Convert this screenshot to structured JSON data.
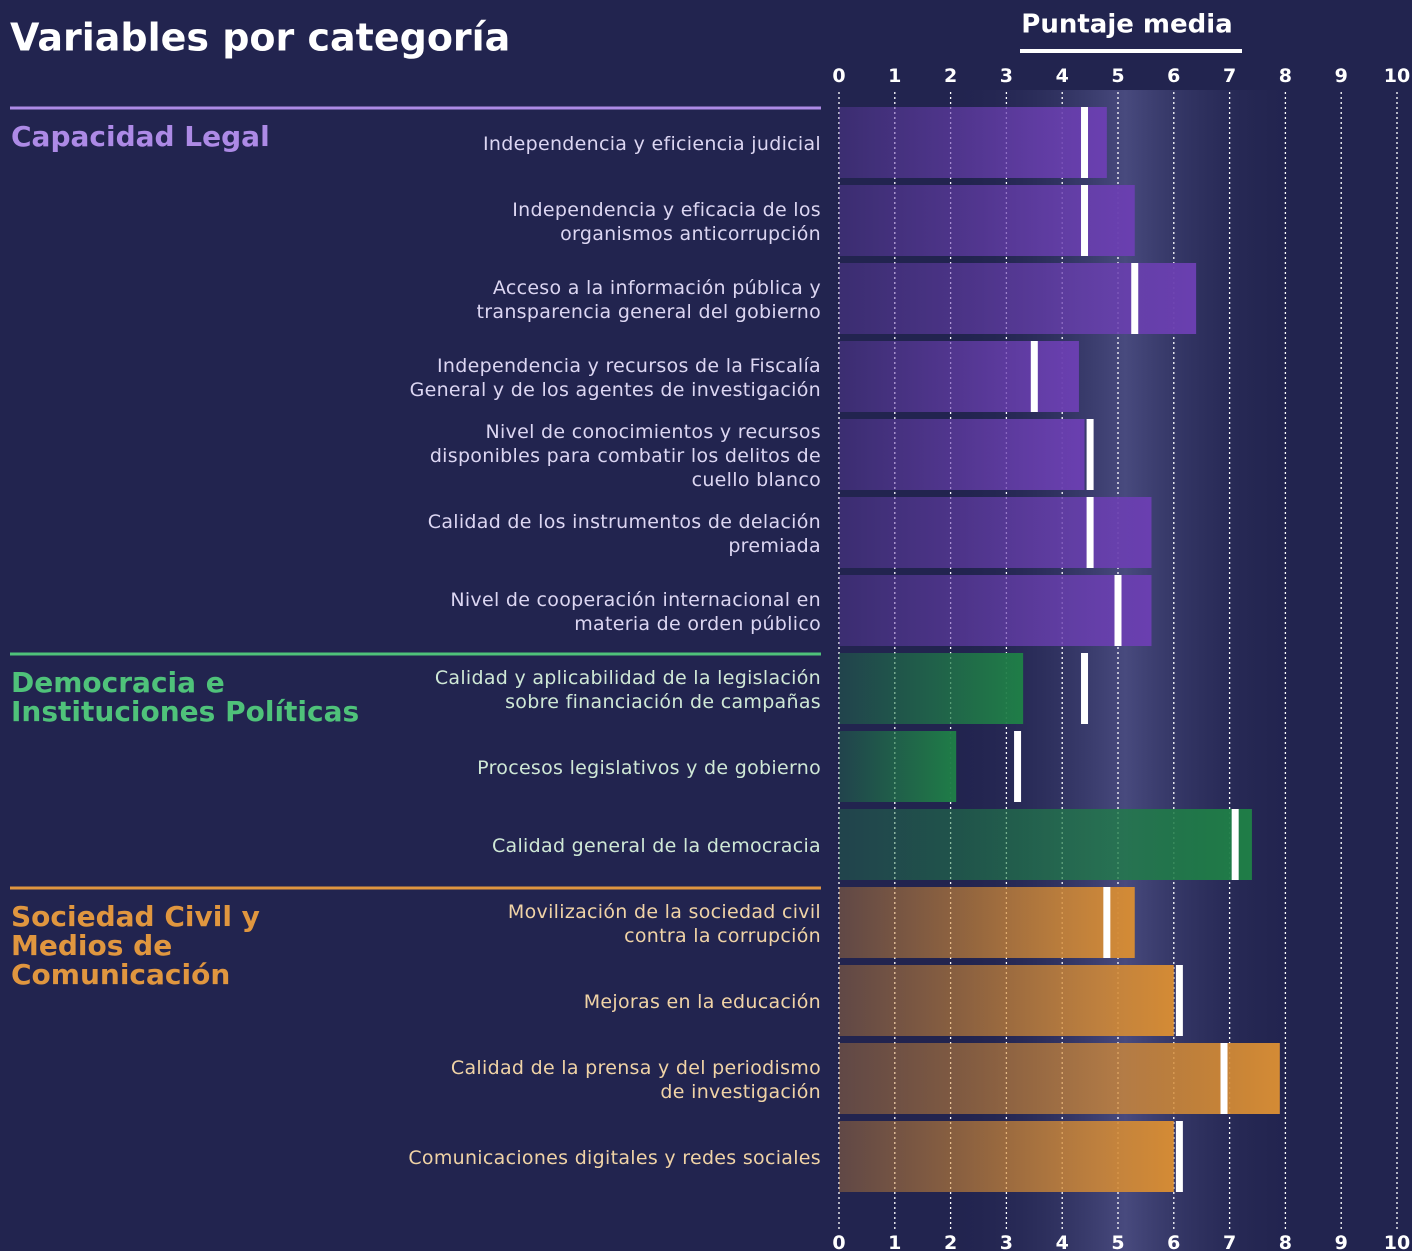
{
  "chart_data": {
    "type": "bar",
    "title": "Variables por categoría",
    "mean_label": "Puntaje media",
    "xlim": [
      0,
      10
    ],
    "xticks": [
      0,
      1,
      2,
      3,
      4,
      5,
      6,
      7,
      8,
      9,
      10
    ],
    "grid": true,
    "groups": [
      {
        "name": "Capacidad Legal",
        "color": "#6a3fb0",
        "label_color": "#ad8ae6",
        "text_color": "#dcd6f2",
        "categories": [
          "Independencia y eficiencia judicial",
          "Independencia y eficacia de los\norganismos anticorrupción",
          "Acceso a la información pública y\ntransparencia general del gobierno",
          "Independencia y recursos de la Fiscalía\nGeneral y de los agentes de investigación",
          "Nivel de conocimientos y recursos\ndisponibles para combatir los delitos de\ncuello blanco",
          "Calidad de los instrumentos de delación\npremiada",
          "Nivel de cooperación internacional en\nmateria de orden público"
        ],
        "values": [
          4.8,
          5.3,
          6.4,
          4.3,
          4.4,
          5.6,
          5.6
        ],
        "means": [
          4.4,
          4.4,
          5.3,
          3.5,
          4.5,
          4.5,
          5.0
        ]
      },
      {
        "name": "Democracia e Instituciones Políticas",
        "color": "#1f7d47",
        "label_color": "#4fc27a",
        "text_color": "#cfe8d6",
        "categories": [
          "Calidad y aplicabilidad de la legislación\nsobre financiación de campañas",
          "Procesos legislativos y de gobierno",
          "Calidad general de la democracia"
        ],
        "values": [
          3.3,
          2.1,
          7.4
        ],
        "means": [
          4.4,
          3.2,
          7.1
        ]
      },
      {
        "name": "Sociedad Civil y Medios de Comunicación",
        "color": "#d48b35",
        "label_color": "#e0963f",
        "text_color": "#f0d3a6",
        "categories": [
          "Movilización de la sociedad civil\ncontra la corrupción",
          "Mejoras en la educación",
          "Calidad de la prensa y del periodismo\nde investigación",
          "Comunicaciones digitales y redes sociales"
        ],
        "values": [
          5.3,
          6.0,
          7.9,
          6.0
        ],
        "means": [
          4.8,
          6.1,
          6.9,
          6.1
        ]
      }
    ]
  }
}
